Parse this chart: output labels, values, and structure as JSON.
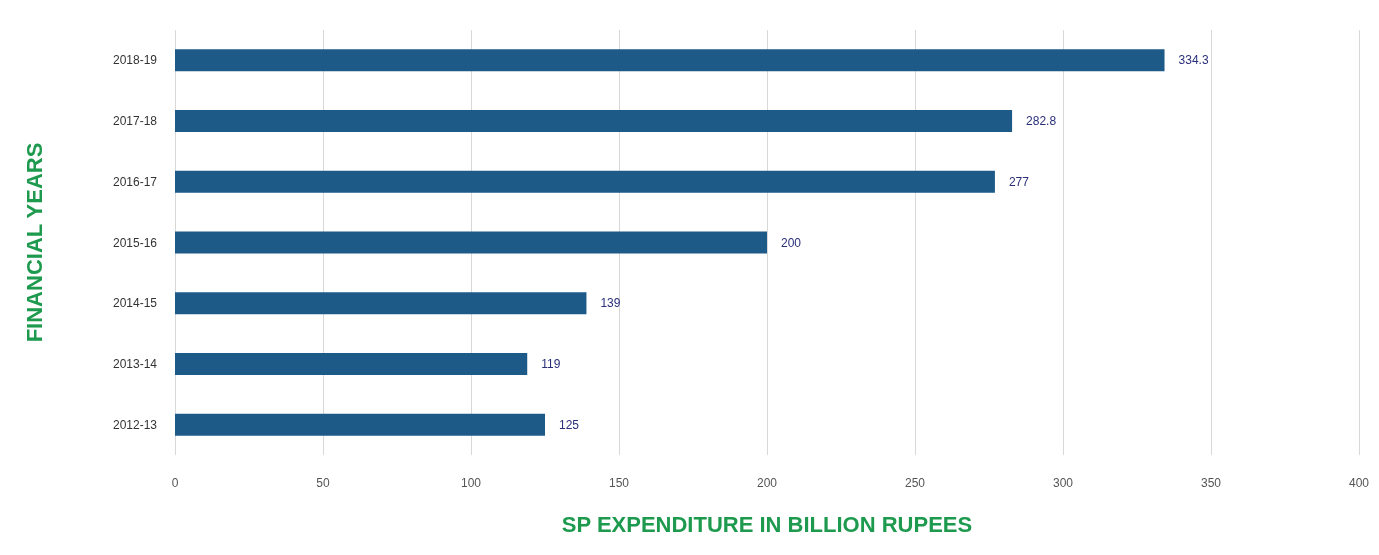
{
  "chart_data": {
    "type": "bar",
    "orientation": "horizontal",
    "xlabel": "SP EXPENDITURE IN BILLION RUPEES",
    "ylabel": "FINANCIAL YEARS",
    "categories": [
      "2018-19",
      "2017-18",
      "2016-17",
      "2015-16",
      "2014-15",
      "2013-14",
      "2012-13"
    ],
    "values": [
      334.3,
      282.8,
      277,
      200,
      139,
      119,
      125
    ],
    "color": "#1d5a87",
    "xlim": [
      0,
      400
    ],
    "xticks": [
      0,
      50,
      100,
      150,
      200,
      250,
      300,
      350,
      400
    ],
    "grid": "x",
    "data_labels": true
  }
}
